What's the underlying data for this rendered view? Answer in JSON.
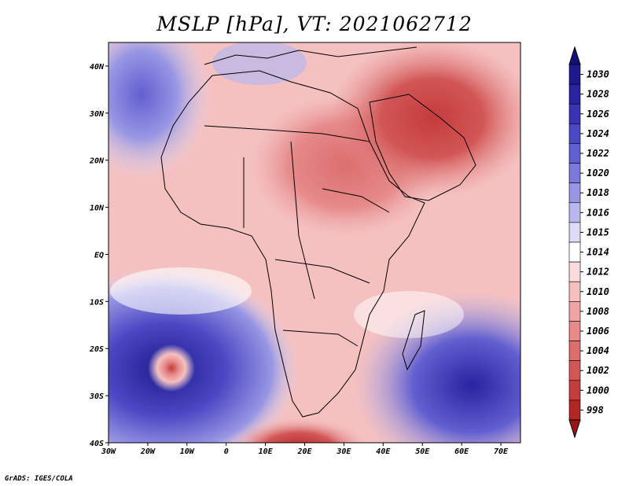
{
  "title": "MSLP [hPa], VT: 2021062712",
  "credit": "GrADS: IGES/COLA",
  "map": {
    "lon_range": [
      -30,
      75
    ],
    "lat_range": [
      -40,
      45
    ],
    "lon_ticks": [
      {
        "value": -30,
        "label": "30W"
      },
      {
        "value": -20,
        "label": "20W"
      },
      {
        "value": -10,
        "label": "10W"
      },
      {
        "value": 0,
        "label": "0"
      },
      {
        "value": 10,
        "label": "10E"
      },
      {
        "value": 20,
        "label": "20E"
      },
      {
        "value": 30,
        "label": "30E"
      },
      {
        "value": 40,
        "label": "40E"
      },
      {
        "value": 50,
        "label": "50E"
      },
      {
        "value": 60,
        "label": "60E"
      },
      {
        "value": 70,
        "label": "70E"
      }
    ],
    "lat_ticks": [
      {
        "value": 40,
        "label": "40N"
      },
      {
        "value": 30,
        "label": "30N"
      },
      {
        "value": 20,
        "label": "20N"
      },
      {
        "value": 10,
        "label": "10N"
      },
      {
        "value": 0,
        "label": "EQ"
      },
      {
        "value": -10,
        "label": "10S"
      },
      {
        "value": -20,
        "label": "20S"
      },
      {
        "value": -30,
        "label": "30S"
      },
      {
        "value": -40,
        "label": "40S"
      }
    ]
  },
  "colorbar": {
    "levels": [
      {
        "label": "1030",
        "color": "#1e1a8c"
      },
      {
        "label": "1028",
        "color": "#2823a0"
      },
      {
        "label": "1026",
        "color": "#3a34b4"
      },
      {
        "label": "1024",
        "color": "#4c48c4"
      },
      {
        "label": "1022",
        "color": "#625fd0"
      },
      {
        "label": "1020",
        "color": "#7a78da"
      },
      {
        "label": "1018",
        "color": "#9896e4"
      },
      {
        "label": "1016",
        "color": "#b8b8ee"
      },
      {
        "label": "1015",
        "color": "#dcdcf6"
      },
      {
        "label": "1014",
        "color": "#ffffff"
      },
      {
        "label": "1012",
        "color": "#fbdcdc"
      },
      {
        "label": "1010",
        "color": "#f5c0c0"
      },
      {
        "label": "1008",
        "color": "#eea4a4"
      },
      {
        "label": "1006",
        "color": "#e68a8a"
      },
      {
        "label": "1004",
        "color": "#dc6e6e"
      },
      {
        "label": "1002",
        "color": "#d25656"
      },
      {
        "label": "1000",
        "color": "#c43c3c"
      },
      {
        "label": "998",
        "color": "#b22626"
      }
    ],
    "top_arrow_color": "#14107a",
    "bottom_arrow_color": "#9c1414"
  }
}
